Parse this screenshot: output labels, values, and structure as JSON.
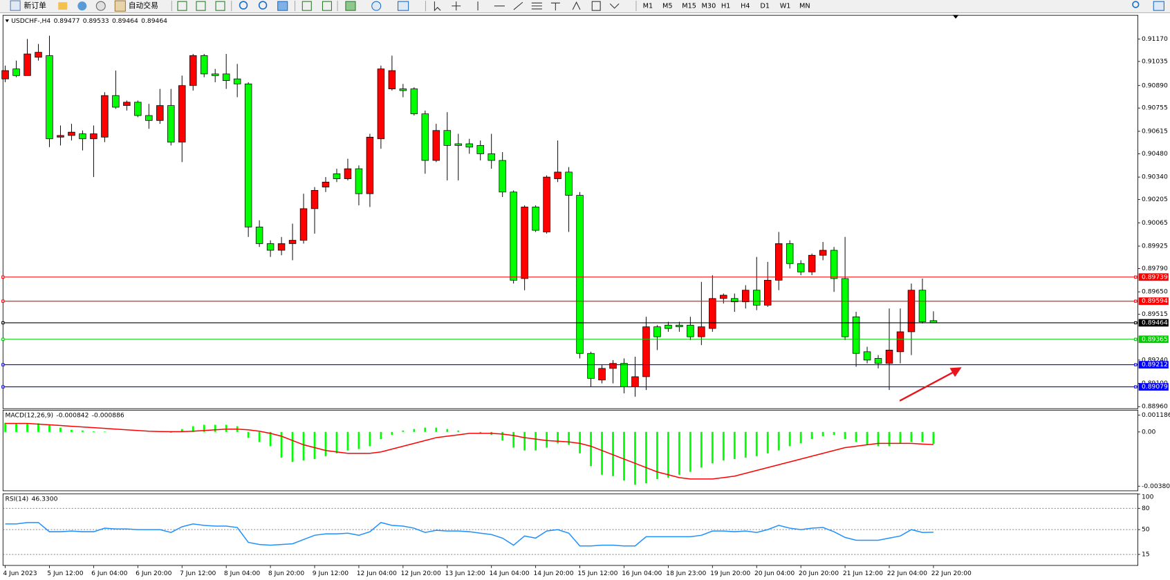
{
  "toolbar": {
    "buttons": [
      "新订单",
      "自动交易"
    ],
    "periods": [
      "M1",
      "M5",
      "M15",
      "M30",
      "H1",
      "H4",
      "D1",
      "W1",
      "MN"
    ]
  },
  "chart_data": [
    {
      "type": "candlestick",
      "title": "USDCHF-,H4",
      "categories": [
        "4 Jun 2023",
        null,
        null,
        null,
        "5 Jun 12:00",
        null,
        null,
        null,
        "6 Jun 04:00",
        null,
        null,
        null,
        "6 Jun 20:00",
        null,
        null,
        null,
        "7 Jun 12:00",
        null,
        null,
        null,
        "8 Jun 04:00",
        null,
        null,
        null,
        "8 Jun 20:00",
        null,
        null,
        null,
        "9 Jun 12:00",
        null,
        null,
        null,
        "12 Jun 04:00",
        null,
        null,
        null,
        "12 Jun 20:00",
        null,
        null,
        null,
        "13 Jun 12:00",
        null,
        null,
        null,
        "14 Jun 04:00",
        null,
        null,
        null,
        "14 Jun 20:00",
        null,
        null,
        null,
        "15 Jun 12:00",
        null,
        null,
        null,
        "16 Jun 04:00",
        null,
        null,
        null,
        "18 Jun 23:00",
        null,
        null,
        null,
        "19 Jun 20:00",
        null,
        null,
        null,
        "20 Jun 04:00",
        null,
        null,
        null,
        "20 Jun 20:00",
        null,
        null,
        null,
        "21 Jun 12:00",
        null,
        null,
        null,
        "22 Jun 04:00",
        null,
        null,
        null,
        "22 Jun 20:00"
      ],
      "open": [
        0.9093,
        0.9099,
        0.9095,
        0.9106,
        0.9107,
        0.9058,
        0.9059,
        0.906,
        0.9057,
        0.9058,
        0.9083,
        0.9077,
        0.9079,
        0.9071,
        0.9068,
        0.9077,
        0.9055,
        0.9089,
        0.9107,
        0.9096,
        0.9096,
        0.9093,
        0.909,
        0.9004,
        0.8994,
        0.899,
        0.8994,
        0.8996,
        0.9015,
        0.9028,
        0.9036,
        0.9033,
        0.9039,
        0.9024,
        0.9057,
        0.9087,
        0.9087,
        0.9087,
        0.9072,
        0.9044,
        0.9062,
        0.9054,
        0.9054,
        0.9053,
        0.9048,
        0.9044,
        0.9025,
        0.8973,
        0.9016,
        0.9001,
        0.9033,
        0.9037,
        0.9023,
        0.8928,
        0.8912,
        0.8919,
        0.8922,
        0.8908,
        0.8914,
        0.8944,
        0.8945,
        0.8945,
        0.8945,
        0.8938,
        0.8943,
        0.8961,
        0.8961,
        0.8959,
        0.8966,
        0.8957,
        0.8972,
        0.8994,
        0.8982,
        0.8977,
        0.8987,
        0.899,
        0.8973,
        0.895,
        0.8929,
        0.8925,
        0.8922,
        0.8929,
        0.8941,
        0.8966,
        0.89477
      ],
      "high": [
        0.9101,
        0.9104,
        0.9117,
        0.9114,
        0.9119,
        0.9065,
        0.9066,
        0.9062,
        0.9065,
        0.9085,
        0.9098,
        0.908,
        0.908,
        0.9078,
        0.9087,
        0.9087,
        0.9095,
        0.9108,
        0.9108,
        0.9099,
        0.9108,
        0.9102,
        0.9091,
        0.9008,
        0.8996,
        0.8998,
        0.9006,
        0.9024,
        0.9028,
        0.9034,
        0.9039,
        0.9045,
        0.9041,
        0.906,
        0.9101,
        0.9107,
        0.909,
        0.9088,
        0.9074,
        0.9066,
        0.9073,
        0.906,
        0.9057,
        0.9056,
        0.906,
        0.9049,
        0.9026,
        0.9017,
        0.9017,
        0.9035,
        0.9056,
        0.904,
        0.9025,
        0.8929,
        0.8921,
        0.8924,
        0.8925,
        0.8926,
        0.895,
        0.8945,
        0.8947,
        0.8947,
        0.895,
        0.8971,
        0.8975,
        0.8964,
        0.8964,
        0.8969,
        0.8986,
        0.8983,
        0.9001,
        0.8996,
        0.8984,
        0.8988,
        0.8995,
        0.8992,
        0.8998,
        0.8953,
        0.8932,
        0.8927,
        0.8955,
        0.8955,
        0.897,
        0.8973,
        0.89533
      ],
      "low": [
        0.9091,
        0.9094,
        0.9095,
        0.9104,
        0.9052,
        0.9053,
        0.9056,
        0.905,
        0.9034,
        0.9055,
        0.9075,
        0.9074,
        0.907,
        0.9063,
        0.9066,
        0.9053,
        0.9043,
        0.9086,
        0.9094,
        0.9091,
        0.9087,
        0.9082,
        0.8998,
        0.8992,
        0.8986,
        0.8987,
        0.8984,
        0.8994,
        0.9,
        0.9025,
        0.9031,
        0.9032,
        0.9017,
        0.9016,
        0.9051,
        0.9086,
        0.9082,
        0.9071,
        0.9036,
        0.9043,
        0.9032,
        0.9032,
        0.9048,
        0.9044,
        0.9039,
        0.9022,
        0.897,
        0.8966,
        0.9001,
        0.9,
        0.9031,
        0.9001,
        0.8925,
        0.8908,
        0.891,
        0.891,
        0.8904,
        0.8902,
        0.8906,
        0.893,
        0.8941,
        0.8941,
        0.8936,
        0.8933,
        0.8941,
        0.8958,
        0.8953,
        0.8955,
        0.8954,
        0.8956,
        0.8966,
        0.8979,
        0.8975,
        0.8975,
        0.8984,
        0.8965,
        0.8936,
        0.892,
        0.8922,
        0.8919,
        0.8906,
        0.8922,
        0.8927,
        0.8946,
        0.89464
      ],
      "close": [
        0.9098,
        0.9095,
        0.9108,
        0.9109,
        0.9057,
        0.9059,
        0.9061,
        0.9057,
        0.906,
        0.9083,
        0.9076,
        0.9079,
        0.9071,
        0.9068,
        0.9077,
        0.9055,
        0.9089,
        0.9107,
        0.9096,
        0.9095,
        0.9092,
        0.909,
        0.9004,
        0.8994,
        0.899,
        0.8994,
        0.8996,
        0.9015,
        0.9026,
        0.9031,
        0.9033,
        0.9039,
        0.9024,
        0.9058,
        0.9099,
        0.9098,
        0.9086,
        0.9072,
        0.9044,
        0.9062,
        0.9053,
        0.9053,
        0.9052,
        0.9048,
        0.9044,
        0.9025,
        0.8972,
        0.9016,
        0.9002,
        0.9034,
        0.9037,
        0.9023,
        0.8928,
        0.8913,
        0.8919,
        0.8922,
        0.8908,
        0.8914,
        0.8944,
        0.8938,
        0.8943,
        0.8944,
        0.8938,
        0.8944,
        0.8961,
        0.8963,
        0.8959,
        0.8966,
        0.8957,
        0.8972,
        0.8994,
        0.8982,
        0.8977,
        0.8987,
        0.899,
        0.8973,
        0.8938,
        0.8928,
        0.8924,
        0.8922,
        0.893,
        0.8941,
        0.8966,
        0.8947,
        0.89464
      ],
      "bull_color": "#ff0000",
      "bear_color": "#00ff00",
      "ylim": [
        0.8895,
        0.9131
      ],
      "yticks": [
        {
          "value": 0.9117,
          "label": "0.91170"
        },
        0.91035,
        {
          "value": 0.9089,
          "label": "0.90890"
        },
        0.90755,
        0.90615,
        {
          "value": 0.9048,
          "label": "0.90480"
        },
        {
          "value": 0.9034,
          "label": "0.90340"
        },
        0.90205,
        0.90065,
        0.89925,
        {
          "value": 0.8979,
          "label": "0.89790"
        },
        {
          "value": 0.8965,
          "label": "0.89650"
        },
        0.89515,
        {
          "value": 0.8924,
          "label": "0.89240"
        },
        {
          "value": 0.891,
          "label": "0.89100"
        },
        {
          "value": 0.8896,
          "label": "0.88960"
        }
      ],
      "hlines": [
        {
          "value": 0.89739,
          "color": "#ff0000"
        },
        {
          "value": 0.89594,
          "color": "#ff0000"
        },
        {
          "value": 0.89464,
          "color": "#000000"
        },
        {
          "value": 0.89365,
          "color": "#00cc00"
        },
        {
          "value": 0.89212,
          "color": "#0000ff"
        },
        {
          "value": 0.89079,
          "color": "#0000ff"
        }
      ],
      "grid": false
    },
    {
      "type": "macd",
      "title": "MACD(12,26,9)",
      "series": [
        {
          "type": "bar",
          "color": "#00ff00",
          "values": [
            0.00064,
            0.0006,
            0.0006,
            0.0006,
            0.0005,
            0.0003,
            0.00015,
            0.0001,
            5e-05,
            3e-05,
            0,
            0,
            0,
            0,
            0,
            -5e-05,
            0.0002,
            0.0004,
            0.0005,
            0.0005,
            0.0005,
            0.0004,
            -0.0004,
            -0.0007,
            -0.001,
            -0.0018,
            -0.0021,
            -0.002,
            -0.0019,
            -0.0017,
            -0.0015,
            -0.0013,
            -0.0012,
            -0.001,
            -0.0005,
            -0.0002,
            0.0001,
            0.0002,
            0.0003,
            0.0003,
            0.0002,
            0.0001,
            0,
            -0.0001,
            -0.0002,
            -0.0006,
            -0.0011,
            -0.0013,
            -0.0013,
            -0.0011,
            -0.0008,
            -0.0009,
            -0.0015,
            -0.0024,
            -0.003,
            -0.0031,
            -0.0034,
            -0.0037,
            -0.0036,
            -0.0033,
            -0.0032,
            -0.003,
            -0.0028,
            -0.0025,
            -0.0022,
            -0.002,
            -0.0019,
            -0.0018,
            -0.0017,
            -0.0015,
            -0.0013,
            -0.001,
            -0.0008,
            -0.0005,
            -0.0003,
            -0.0002,
            -0.0005,
            -0.0007,
            -0.0009,
            -0.001,
            -0.001,
            -0.0008,
            -0.0007,
            -0.0007,
            -0.000842
          ]
        },
        {
          "type": "line",
          "color": "#ff0000",
          "values": [
            0.0006,
            0.0006,
            0.0006,
            0.00055,
            0.0005,
            0.00045,
            0.0004,
            0.00035,
            0.0003,
            0.00025,
            0.0002,
            0.00015,
            0.0001,
            5e-05,
            3e-05,
            2e-05,
            2e-05,
            5e-05,
            0.0001,
            0.00015,
            0.0002,
            0.0002,
            0.00015,
            5e-05,
            -0.0001,
            -0.0003,
            -0.0006,
            -0.0009,
            -0.0011,
            -0.0013,
            -0.0014,
            -0.0015,
            -0.0015,
            -0.0015,
            -0.0014,
            -0.0012,
            -0.001,
            -0.0008,
            -0.0006,
            -0.0004,
            -0.0003,
            -0.0002,
            -0.0001,
            -0.0001,
            -0.0001,
            -0.00015,
            -0.00025,
            -0.0004,
            -0.0005,
            -0.0006,
            -0.00065,
            -0.0007,
            -0.0008,
            -0.001,
            -0.0013,
            -0.0016,
            -0.0019,
            -0.0022,
            -0.0025,
            -0.0028,
            -0.003,
            -0.0032,
            -0.0033,
            -0.0033,
            -0.0033,
            -0.0032,
            -0.0031,
            -0.0029,
            -0.0027,
            -0.0025,
            -0.0023,
            -0.0021,
            -0.0019,
            -0.0017,
            -0.0015,
            -0.0013,
            -0.0011,
            -0.001,
            -0.0009,
            -0.0008,
            -0.0008,
            -0.0008,
            -0.0008,
            -0.00085,
            -0.000886
          ]
        }
      ],
      "ylim": [
        -0.0041,
        0.0015
      ],
      "yticks": [
        0.001186,
        {
          "value": 0,
          "label": "0.00"
        },
        -0.003802
      ]
    },
    {
      "type": "line",
      "title": "RSI(14)",
      "readout": "46.3300",
      "series": [
        {
          "color": "#1e90ff",
          "values": [
            58,
            58,
            60,
            60,
            47,
            47,
            48,
            47,
            47,
            52,
            51,
            51,
            50,
            50,
            50,
            46,
            54,
            58,
            56,
            55,
            55,
            53,
            32,
            29,
            28,
            29,
            30,
            36,
            42,
            44,
            44,
            45,
            42,
            47,
            60,
            56,
            55,
            52,
            46,
            49,
            48,
            48,
            47,
            45,
            43,
            38,
            28,
            41,
            38,
            48,
            50,
            45,
            27,
            27,
            28,
            28,
            27,
            27,
            40,
            40,
            40,
            40,
            40,
            42,
            48,
            48,
            47,
            48,
            46,
            50,
            56,
            52,
            50,
            52,
            53,
            47,
            39,
            35,
            35,
            35,
            38,
            41,
            50,
            46,
            46.33
          ]
        }
      ],
      "ylim": [
        0,
        100
      ],
      "yticks": [
        100,
        80,
        50,
        15
      ]
    }
  ]
}
